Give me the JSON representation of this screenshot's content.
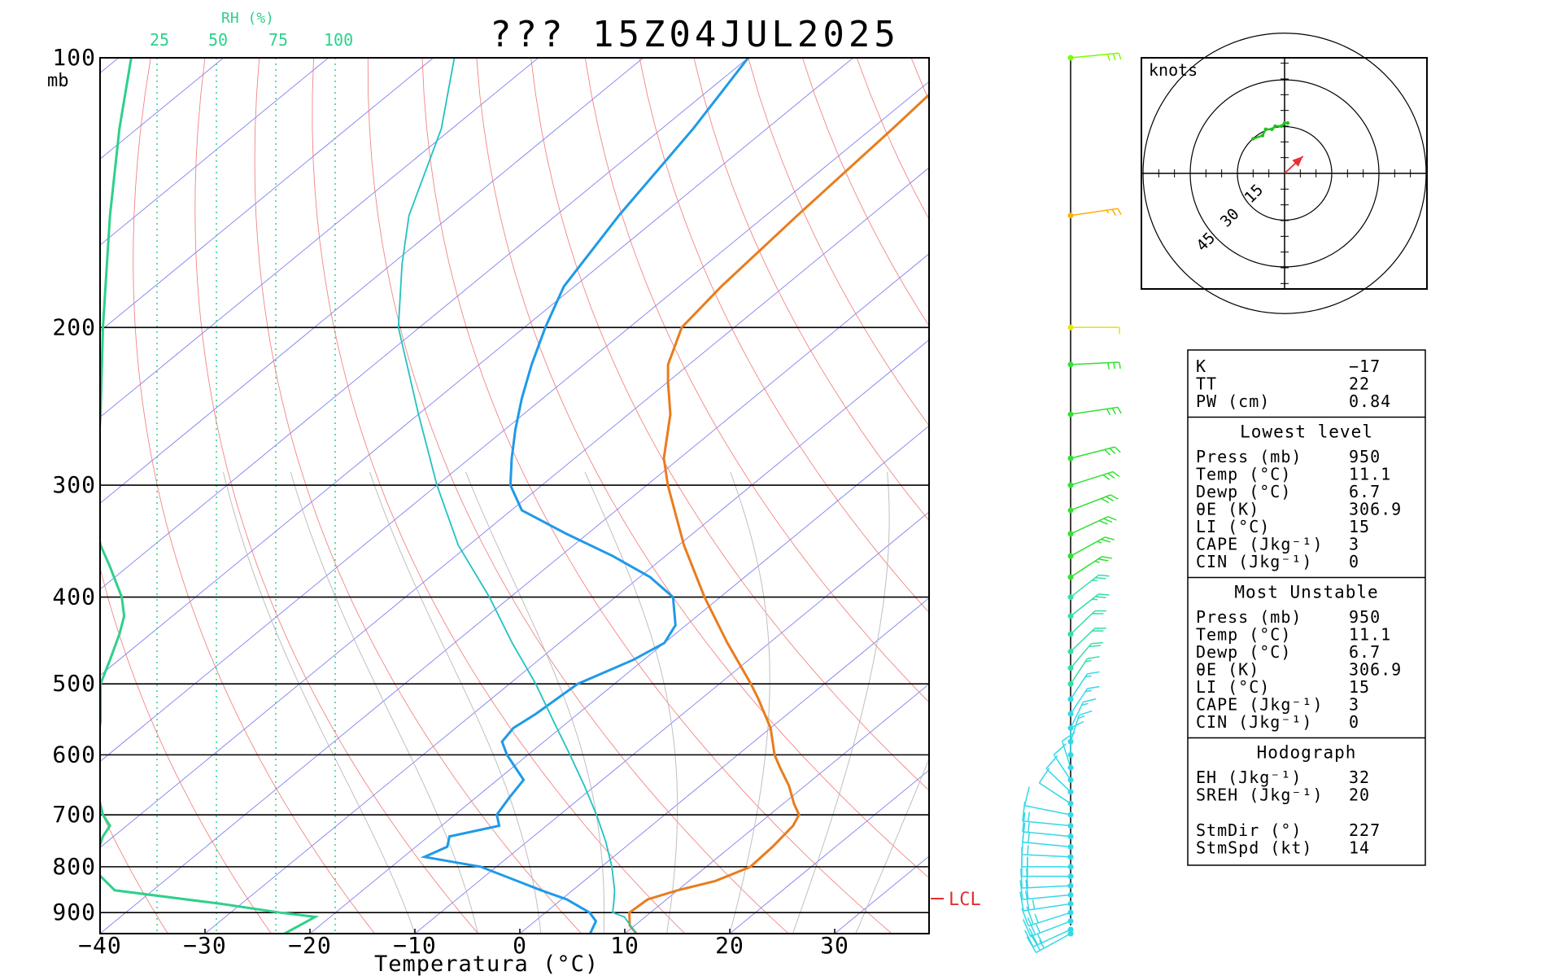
{
  "title": "??? 15Z04JUL2025",
  "colors": {
    "temperature": "#e87d1e",
    "dewpoint": "#1f9ae8",
    "parcel": "#22c2c2",
    "rh": "#2fd08a",
    "isotherm": "#6a6af0",
    "dry_adiabat": "#f07070",
    "moist_adiabat": "#b8b8b8",
    "mixing_ratio": "#2fd08a",
    "lcl": "#e03030",
    "hodograph": "#22c022",
    "storm_motion": "#e83030"
  },
  "chart_data": [
    {
      "type": "line",
      "chart": "skew-t",
      "xlabel": "Temperatura (°C)",
      "ylabel": "mb",
      "pressure_levels": [
        "100",
        "200",
        "300",
        "400",
        "500",
        "600",
        "700",
        "800",
        "900"
      ],
      "temperature_ticks": [
        "−40",
        "−30",
        "−20",
        "−10",
        "0",
        "10",
        "20",
        "30"
      ],
      "xlim": [
        -40,
        38
      ],
      "ylim": [
        950,
        100
      ],
      "skew_deg_per_decade": 0,
      "rh_axis": {
        "title": "RH (%)",
        "ticks": [
          "25",
          "50",
          "75",
          "100"
        ]
      },
      "lcl_label": "LCL",
      "lcl_pressure": 900,
      "series": [
        {
          "name": "",
          "role": "temperature",
          "p": [
            950,
            930,
            900,
            870,
            850,
            830,
            800,
            760,
            720,
            700,
            680,
            650,
            620,
            600,
            560,
            520,
            500,
            450,
            400,
            350,
            300,
            280,
            250,
            230,
            220,
            200,
            180,
            150,
            120,
            100
          ],
          "t": [
            11.1,
            9.5,
            8.0,
            8.2,
            10.0,
            12.5,
            14.2,
            14.0,
            13.5,
            12.8,
            11.0,
            8.5,
            5.5,
            3.5,
            0.0,
            -4.5,
            -7.0,
            -14.0,
            -21.5,
            -29.5,
            -38.0,
            -41.5,
            -46.0,
            -50.0,
            -52.0,
            -55.0,
            -56.0,
            -57.0,
            -58.0,
            -59.0
          ]
        },
        {
          "name": "",
          "role": "dewpoint",
          "p": [
            950,
            920,
            900,
            870,
            850,
            800,
            780,
            760,
            740,
            720,
            700,
            670,
            640,
            600,
            580,
            560,
            540,
            500,
            470,
            450,
            430,
            400,
            380,
            360,
            340,
            320,
            300,
            280,
            260,
            240,
            220,
            200,
            180,
            150,
            120,
            100
          ],
          "t": [
            6.7,
            5.8,
            4.2,
            0.5,
            -3.0,
            -11.5,
            -18.0,
            -17.0,
            -18.0,
            -14.5,
            -16.0,
            -16.8,
            -17.5,
            -22.0,
            -24.0,
            -24.5,
            -24.0,
            -23.5,
            -21.0,
            -20.0,
            -21.0,
            -24.5,
            -29.0,
            -35.0,
            -42.0,
            -49.0,
            -53.0,
            -56.0,
            -59.0,
            -62.0,
            -65.0,
            -68.0,
            -71.0,
            -74.0,
            -77.0,
            -80.0
          ]
        },
        {
          "name": "",
          "role": "parcel",
          "p": [
            950,
            910,
            900,
            870,
            850,
            800,
            750,
            700,
            650,
            600,
            550,
            500,
            450,
            400,
            350,
            300,
            250,
            200,
            170,
            150,
            120,
            100
          ],
          "t": [
            11.1,
            8.0,
            6.4,
            5.0,
            4.0,
            1.0,
            -2.5,
            -6.5,
            -11.0,
            -16.0,
            -21.5,
            -27.5,
            -34.5,
            -42.0,
            -51.0,
            -60.0,
            -70.0,
            -82.0,
            -89.0,
            -94.0,
            -101.0,
            -108.0
          ]
        },
        {
          "name": "",
          "role": "rh",
          "p": [
            950,
            910,
            900,
            880,
            850,
            800,
            780,
            740,
            720,
            700,
            650,
            600,
            550,
            500,
            470,
            440,
            420,
            400,
            370,
            350,
            330,
            300,
            250,
            200,
            150,
            120,
            100
          ],
          "rh": [
            72,
            85,
            70,
            45,
            0,
            -10,
            -8,
            -5,
            -2,
            -5,
            -8,
            -8,
            -6,
            -6,
            -2,
            2,
            4,
            3,
            -2,
            -6,
            -8,
            -8,
            -6,
            -5,
            -2,
            2,
            7
          ]
        }
      ]
    },
    {
      "type": "scatter",
      "chart": "wind-profile",
      "p": [
        100,
        150,
        200,
        220,
        250,
        280,
        300,
        320,
        340,
        360,
        380,
        400,
        420,
        440,
        460,
        480,
        500,
        520,
        540,
        560,
        580,
        600,
        620,
        640,
        660,
        680,
        700,
        720,
        740,
        760,
        780,
        800,
        820,
        840,
        860,
        880,
        900,
        920,
        940,
        950
      ],
      "speed_kt": [
        30,
        23,
        10,
        30,
        30,
        30,
        30,
        30,
        30,
        25,
        25,
        25,
        25,
        20,
        20,
        20,
        15,
        15,
        15,
        15,
        15,
        10,
        10,
        10,
        10,
        10,
        10,
        15,
        15,
        15,
        15,
        15,
        20,
        20,
        20,
        25,
        25,
        25,
        25,
        25
      ],
      "direction_deg": [
        260,
        255,
        270,
        265,
        255,
        245,
        240,
        235,
        230,
        225,
        220,
        215,
        215,
        210,
        210,
        205,
        200,
        200,
        200,
        195,
        190,
        180,
        170,
        160,
        150,
        140,
        110,
        100,
        100,
        100,
        95,
        90,
        90,
        85,
        80,
        75,
        60,
        55,
        50,
        45
      ]
    },
    {
      "type": "line",
      "chart": "hodograph",
      "title": "knots",
      "ring_labels": [
        "15",
        "30",
        "45"
      ],
      "series": [
        {
          "name": "",
          "u": [
            -10,
            -7,
            -6,
            -4,
            -3,
            -1,
            0,
            1
          ],
          "v": [
            11,
            12,
            14,
            14,
            15,
            15,
            16,
            16
          ]
        }
      ],
      "storm_motion": {
        "dir_deg": 227,
        "speed_kt": 14
      }
    },
    {
      "type": "table",
      "chart": "indices",
      "sections": [
        {
          "header": "",
          "rows": [
            [
              "K",
              "−17"
            ],
            [
              "TT",
              "22"
            ],
            [
              "PW (cm)",
              "0.84"
            ]
          ]
        },
        {
          "header": "Lowest level",
          "rows": [
            [
              "Press (mb)",
              "950"
            ],
            [
              "Temp (°C)",
              "11.1"
            ],
            [
              "Dewp (°C)",
              "6.7"
            ],
            [
              "θE (K)",
              "306.9"
            ],
            [
              "LI (°C)",
              "15"
            ],
            [
              "CAPE (Jkg⁻¹)",
              "3"
            ],
            [
              "CIN (Jkg⁻¹)",
              "0"
            ]
          ]
        },
        {
          "header": "Most Unstable",
          "rows": [
            [
              "Press (mb)",
              "950"
            ],
            [
              "Temp (°C)",
              "11.1"
            ],
            [
              "Dewp (°C)",
              "6.7"
            ],
            [
              "θE (K)",
              "306.9"
            ],
            [
              "LI (°C)",
              "15"
            ],
            [
              "CAPE (Jkg⁻¹)",
              "3"
            ],
            [
              "CIN (Jkg⁻¹)",
              "0"
            ]
          ]
        },
        {
          "header": "Hodograph",
          "rows": [
            [
              "EH (Jkg⁻¹)",
              "32"
            ],
            [
              "SREH (Jkg⁻¹)",
              "20"
            ]
          ]
        },
        {
          "header": "",
          "rows": [
            [
              "StmDir (°)",
              "227"
            ],
            [
              "StmSpd (kt)",
              "14"
            ]
          ]
        }
      ]
    }
  ]
}
